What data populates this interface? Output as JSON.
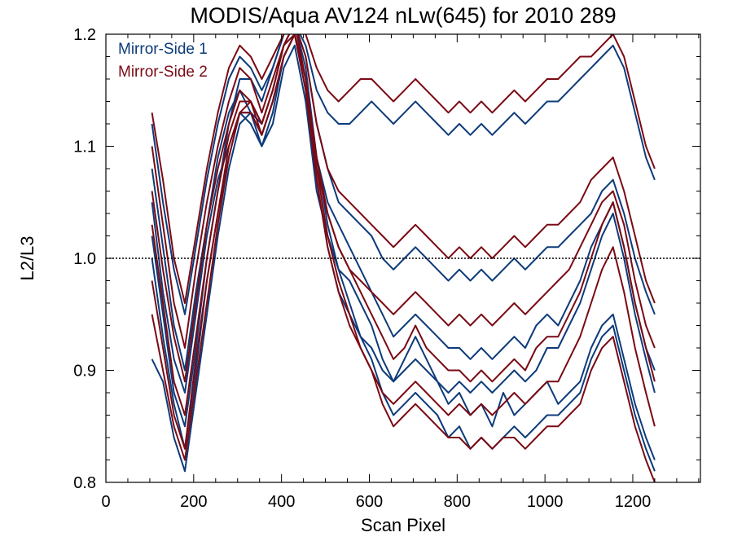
{
  "colors": {
    "mirror_side_1": "#0d3b7a",
    "mirror_side_2": "#7a0a14",
    "axis": "#000000",
    "background": "#ffffff"
  },
  "chart_data": {
    "type": "line",
    "title": "MODIS/Aqua AV124 nLw(645) for 2010 289",
    "xlabel": "Scan Pixel",
    "ylabel": "L2/L3",
    "xlim": [
      0,
      1354
    ],
    "ylim": [
      0.8,
      1.2
    ],
    "xticks": [
      0,
      200,
      400,
      600,
      800,
      1000,
      1200
    ],
    "xtick_labels": [
      "0",
      "200",
      "400",
      "600",
      "800",
      "1000",
      "1200"
    ],
    "yticks": [
      0.8,
      0.9,
      1.0,
      1.1,
      1.2
    ],
    "ytick_labels": [
      "0.8",
      "0.9",
      "1.0",
      "1.1",
      "1.2"
    ],
    "reference_line": 1.0,
    "legend": {
      "position": "top-left",
      "entries": [
        "Mirror-Side 1",
        "Mirror-Side 2"
      ]
    },
    "x": [
      105,
      130,
      155,
      180,
      205,
      230,
      255,
      280,
      305,
      330,
      355,
      380,
      405,
      430,
      455,
      480,
      505,
      530,
      555,
      580,
      605,
      630,
      655,
      680,
      705,
      730,
      755,
      780,
      805,
      830,
      855,
      880,
      905,
      930,
      955,
      980,
      1005,
      1030,
      1055,
      1080,
      1105,
      1130,
      1155,
      1180,
      1205,
      1230,
      1250
    ],
    "series": [
      {
        "name": "Mirror-Side 1",
        "values": [
          1.08,
          1.01,
          0.94,
          0.9,
          0.97,
          1.03,
          1.09,
          1.13,
          1.15,
          1.13,
          1.1,
          1.12,
          1.17,
          1.19,
          1.14,
          1.06,
          1.02,
          0.99,
          0.98,
          0.96,
          0.94,
          0.91,
          0.89,
          0.91,
          0.93,
          0.91,
          0.89,
          0.87,
          0.88,
          0.86,
          0.87,
          0.85,
          0.88,
          0.86,
          0.87,
          0.88,
          0.89,
          0.87,
          0.88,
          0.89,
          0.92,
          0.94,
          0.95,
          0.91,
          0.87,
          0.84,
          0.82
        ]
      },
      {
        "name": "Mirror-Side 1",
        "values": [
          1.05,
          0.97,
          0.91,
          0.88,
          0.95,
          1.02,
          1.07,
          1.1,
          1.13,
          1.12,
          1.1,
          1.13,
          1.18,
          1.2,
          1.16,
          1.09,
          1.05,
          1.03,
          1.01,
          0.99,
          0.97,
          0.95,
          0.93,
          0.94,
          0.95,
          0.94,
          0.93,
          0.92,
          0.92,
          0.91,
          0.92,
          0.91,
          0.92,
          0.93,
          0.92,
          0.94,
          0.95,
          0.94,
          0.96,
          0.98,
          1.01,
          1.03,
          1.05,
          1.01,
          0.96,
          0.92,
          0.9
        ]
      },
      {
        "name": "Mirror-Side 1",
        "values": [
          1.02,
          0.95,
          0.88,
          0.85,
          0.92,
          1.0,
          1.06,
          1.12,
          1.16,
          1.16,
          1.14,
          1.17,
          1.2,
          1.21,
          1.18,
          1.12,
          1.08,
          1.05,
          1.04,
          1.03,
          1.02,
          1.0,
          0.99,
          1.0,
          1.01,
          1.0,
          0.99,
          0.98,
          0.99,
          0.98,
          0.99,
          0.98,
          0.99,
          1.0,
          0.99,
          1.0,
          1.01,
          1.01,
          1.02,
          1.03,
          1.04,
          1.06,
          1.07,
          1.04,
          1.0,
          0.97,
          0.95
        ]
      },
      {
        "name": "Mirror-Side 1",
        "values": [
          0.91,
          0.89,
          0.84,
          0.81,
          0.88,
          0.95,
          1.02,
          1.08,
          1.12,
          1.13,
          1.12,
          1.15,
          1.19,
          1.21,
          1.17,
          1.09,
          1.03,
          0.99,
          0.96,
          0.93,
          0.91,
          0.88,
          0.86,
          0.87,
          0.88,
          0.87,
          0.86,
          0.84,
          0.85,
          0.83,
          0.84,
          0.83,
          0.84,
          0.85,
          0.84,
          0.85,
          0.86,
          0.86,
          0.87,
          0.88,
          0.91,
          0.93,
          0.94,
          0.9,
          0.86,
          0.83,
          0.81
        ]
      },
      {
        "name": "Mirror-Side 1",
        "values": [
          1.12,
          1.05,
          0.99,
          0.95,
          1.01,
          1.07,
          1.12,
          1.16,
          1.18,
          1.17,
          1.15,
          1.17,
          1.2,
          1.21,
          1.19,
          1.15,
          1.13,
          1.12,
          1.12,
          1.13,
          1.14,
          1.13,
          1.12,
          1.13,
          1.14,
          1.13,
          1.12,
          1.11,
          1.12,
          1.11,
          1.12,
          1.11,
          1.12,
          1.13,
          1.12,
          1.13,
          1.14,
          1.14,
          1.15,
          1.16,
          1.17,
          1.18,
          1.19,
          1.17,
          1.13,
          1.09,
          1.07
        ]
      },
      {
        "name": "Mirror-Side 1",
        "values": [
          1.0,
          0.93,
          0.87,
          0.83,
          0.9,
          0.98,
          1.04,
          1.09,
          1.13,
          1.13,
          1.11,
          1.14,
          1.18,
          1.2,
          1.15,
          1.07,
          1.01,
          0.97,
          0.95,
          0.93,
          0.92,
          0.9,
          0.89,
          0.9,
          0.91,
          0.9,
          0.89,
          0.88,
          0.89,
          0.88,
          0.89,
          0.88,
          0.89,
          0.9,
          0.89,
          0.9,
          0.92,
          0.92,
          0.94,
          0.96,
          0.99,
          1.02,
          1.04,
          1.0,
          0.95,
          0.91,
          0.88
        ]
      },
      {
        "name": "Mirror-Side 2",
        "values": [
          1.06,
          0.99,
          0.93,
          0.89,
          0.96,
          1.03,
          1.08,
          1.12,
          1.15,
          1.14,
          1.11,
          1.14,
          1.18,
          1.2,
          1.16,
          1.08,
          1.04,
          1.01,
          0.99,
          0.97,
          0.95,
          0.93,
          0.91,
          0.92,
          0.94,
          0.92,
          0.91,
          0.9,
          0.9,
          0.89,
          0.9,
          0.89,
          0.9,
          0.91,
          0.9,
          0.92,
          0.93,
          0.93,
          0.95,
          0.97,
          1.0,
          1.03,
          1.05,
          1.01,
          0.96,
          0.92,
          0.89
        ]
      },
      {
        "name": "Mirror-Side 2",
        "values": [
          1.1,
          1.03,
          0.96,
          0.92,
          0.99,
          1.05,
          1.1,
          1.14,
          1.17,
          1.16,
          1.13,
          1.16,
          1.19,
          1.21,
          1.18,
          1.12,
          1.08,
          1.06,
          1.05,
          1.04,
          1.03,
          1.02,
          1.01,
          1.02,
          1.03,
          1.02,
          1.01,
          1.0,
          1.01,
          1.0,
          1.01,
          1.0,
          1.01,
          1.02,
          1.01,
          1.02,
          1.03,
          1.03,
          1.04,
          1.05,
          1.07,
          1.08,
          1.09,
          1.06,
          1.02,
          0.98,
          0.96
        ]
      },
      {
        "name": "Mirror-Side 2",
        "values": [
          0.95,
          0.9,
          0.85,
          0.82,
          0.89,
          0.96,
          1.03,
          1.09,
          1.13,
          1.14,
          1.12,
          1.15,
          1.19,
          1.21,
          1.16,
          1.08,
          1.02,
          0.98,
          0.95,
          0.92,
          0.9,
          0.87,
          0.85,
          0.86,
          0.87,
          0.86,
          0.85,
          0.84,
          0.84,
          0.83,
          0.84,
          0.83,
          0.84,
          0.84,
          0.83,
          0.84,
          0.85,
          0.85,
          0.86,
          0.87,
          0.9,
          0.92,
          0.93,
          0.89,
          0.85,
          0.82,
          0.8
        ]
      },
      {
        "name": "Mirror-Side 2",
        "values": [
          1.13,
          1.07,
          1.0,
          0.96,
          1.02,
          1.08,
          1.13,
          1.17,
          1.19,
          1.18,
          1.16,
          1.18,
          1.2,
          1.21,
          1.2,
          1.17,
          1.15,
          1.14,
          1.15,
          1.16,
          1.16,
          1.15,
          1.14,
          1.15,
          1.16,
          1.15,
          1.14,
          1.13,
          1.14,
          1.13,
          1.14,
          1.13,
          1.14,
          1.15,
          1.14,
          1.15,
          1.16,
          1.16,
          1.17,
          1.18,
          1.18,
          1.19,
          1.2,
          1.18,
          1.14,
          1.1,
          1.08
        ]
      },
      {
        "name": "Mirror-Side 2",
        "values": [
          1.03,
          0.96,
          0.89,
          0.86,
          0.93,
          1.0,
          1.06,
          1.11,
          1.14,
          1.14,
          1.12,
          1.15,
          1.19,
          1.2,
          1.16,
          1.09,
          1.04,
          1.01,
          0.99,
          0.98,
          0.97,
          0.96,
          0.95,
          0.96,
          0.97,
          0.96,
          0.95,
          0.94,
          0.95,
          0.94,
          0.95,
          0.94,
          0.95,
          0.96,
          0.95,
          0.96,
          0.97,
          0.98,
          0.99,
          1.01,
          1.03,
          1.05,
          1.06,
          1.03,
          0.98,
          0.94,
          0.92
        ]
      },
      {
        "name": "Mirror-Side 2",
        "values": [
          0.98,
          0.92,
          0.86,
          0.83,
          0.91,
          0.98,
          1.04,
          1.1,
          1.13,
          1.13,
          1.11,
          1.14,
          1.18,
          1.2,
          1.15,
          1.07,
          1.01,
          0.97,
          0.94,
          0.92,
          0.9,
          0.88,
          0.87,
          0.88,
          0.89,
          0.88,
          0.87,
          0.86,
          0.87,
          0.86,
          0.87,
          0.86,
          0.87,
          0.88,
          0.87,
          0.88,
          0.89,
          0.89,
          0.91,
          0.93,
          0.96,
          0.99,
          1.01,
          0.97,
          0.92,
          0.88,
          0.85
        ]
      }
    ]
  }
}
